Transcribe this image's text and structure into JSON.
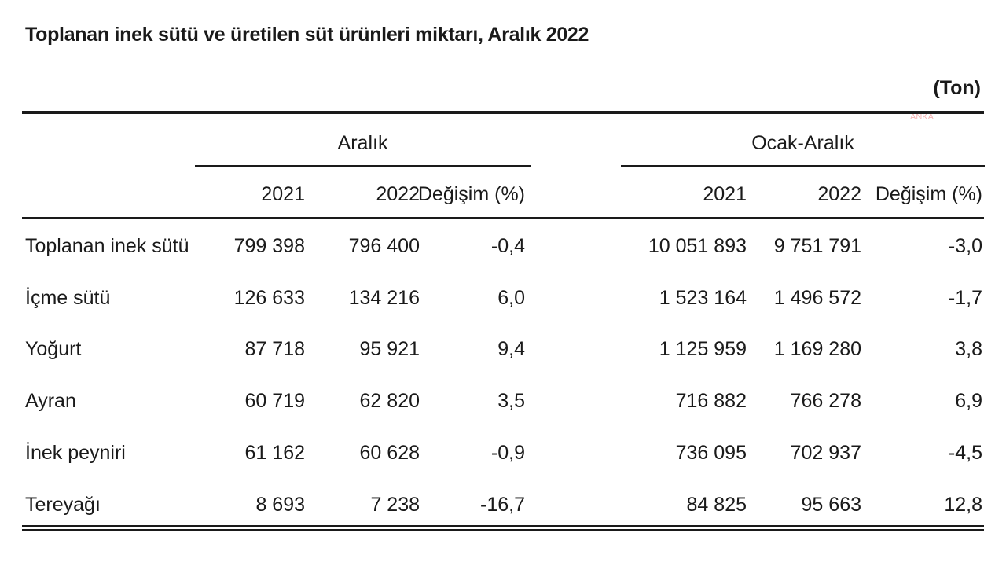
{
  "title": "Toplanan inek sütü ve üretilen süt ürünleri miktarı, Aralık 2022",
  "unit": "(Ton)",
  "watermark": "ANKA",
  "groups": [
    "Aralık",
    "Ocak-Aralık"
  ],
  "columns": [
    "2021",
    "2022",
    "Değişim (%)",
    "2021",
    "2022",
    "Değişim (%)"
  ],
  "rows": [
    {
      "label": "Toplanan inek sütü",
      "values": [
        "799 398",
        "796 400",
        "-0,4",
        "10 051 893",
        "9 751 791",
        "-3,0"
      ]
    },
    {
      "label": "İçme sütü",
      "values": [
        "126 633",
        "134 216",
        "6,0",
        "1 523 164",
        "1 496 572",
        "-1,7"
      ]
    },
    {
      "label": "Yoğurt",
      "values": [
        "87 718",
        "95 921",
        "9,4",
        "1 125 959",
        "1 169 280",
        "3,8"
      ]
    },
    {
      "label": "Ayran",
      "values": [
        "60 719",
        "62 820",
        "3,5",
        "716 882",
        "766 278",
        "6,9"
      ]
    },
    {
      "label": "İnek peyniri",
      "values": [
        "61 162",
        "60 628",
        "-0,9",
        "736 095",
        "702 937",
        "-4,5"
      ]
    },
    {
      "label": "Tereyağı",
      "values": [
        "8 693",
        "7 238",
        "-16,7",
        "84 825",
        "95 663",
        "12,8"
      ]
    }
  ]
}
